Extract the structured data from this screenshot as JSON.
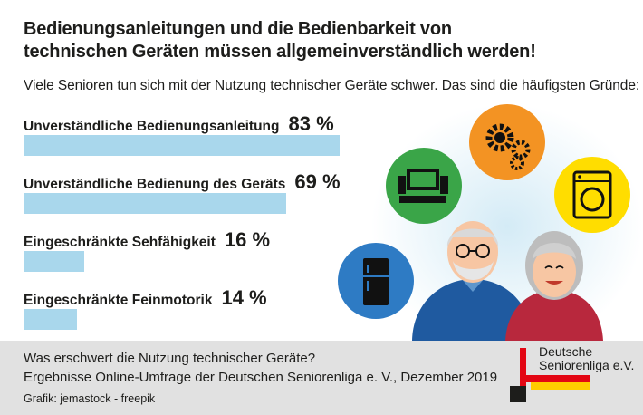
{
  "header": {
    "title_line1": "Bedienungsanleitungen und die Bedienbarkeit von",
    "title_line2": "technischen Geräten müssen allgemeinverständlich werden!",
    "subtitle": "Viele Senioren tun sich mit der Nutzung technischer Geräte schwer. Das sind die häufigsten Gründe:"
  },
  "chart_data": {
    "type": "bar",
    "orientation": "horizontal",
    "categories": [
      "Unverständliche Bedienungsanleitung",
      "Unverständliche Bedienung des Geräts",
      "Eingeschränkte Sehfähigkeit",
      "Eingeschränkte Feinmotorik"
    ],
    "values": [
      83,
      69,
      16,
      14
    ],
    "value_labels": [
      "83 %",
      "69 %",
      "16 %",
      "14 %"
    ],
    "unit": "%",
    "xlim": [
      0,
      100
    ],
    "grid": false,
    "bar_color": "#a9d7ec"
  },
  "footer": {
    "line1": "Was erschwert die Nutzung technischer Geräte?",
    "line2": "Ergebnisse Online-Umfrage der Deutschen Seniorenliga e. V., Dezember 2019",
    "credit": "Grafik: jemastock - freepik"
  },
  "logo": {
    "line1": "Deutsche",
    "line2": "Seniorenliga e.V."
  },
  "illustration": {
    "icons": [
      "tv-stereo-icon",
      "gears-icon",
      "washing-machine-icon",
      "fridge-icon"
    ],
    "icon_colors": [
      "#3aa548",
      "#f39323",
      "#ffdd00",
      "#2e7bc4"
    ]
  },
  "colors": {
    "bar": "#a9d7ec",
    "footer_bg": "#e1e1e1",
    "logo_black": "#1d1d1b",
    "logo_red": "#e30613",
    "logo_gold": "#ffcc00"
  }
}
